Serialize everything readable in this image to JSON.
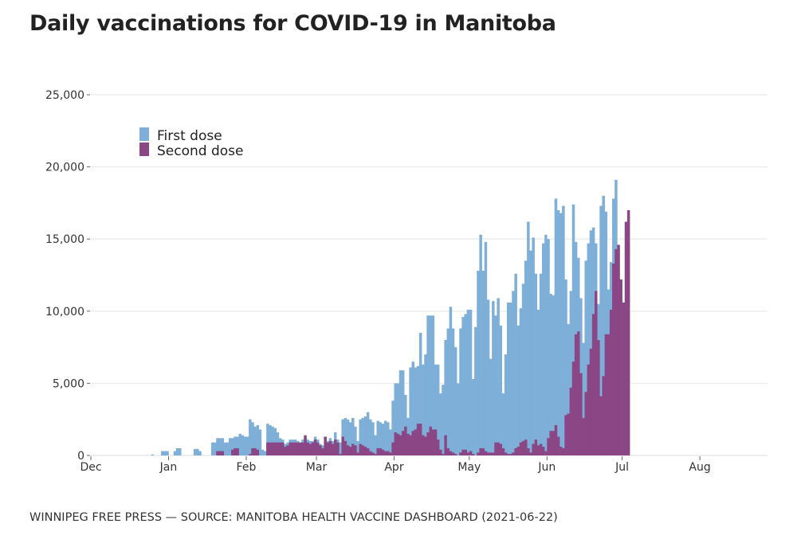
{
  "title": "Daily vaccinations for COVID-19 in Manitoba",
  "footer": "WINNIPEG FREE PRESS — SOURCE: MANITOBA HEALTH VACCINE DASHBOARD (2021-06-22)",
  "chart_data": {
    "type": "bar",
    "title": "Daily vaccinations for COVID-19 in Manitoba",
    "xlabel": "",
    "ylabel": "",
    "ylim": [
      0,
      25000
    ],
    "xlim": [
      "2020-12-01",
      "2021-08-28"
    ],
    "grid": true,
    "legend_position": "top-left",
    "yticks": [
      0,
      5000,
      10000,
      15000,
      20000,
      25000
    ],
    "ytick_labels": [
      "0",
      "5,000",
      "10,000",
      "15,000",
      "20,000",
      "25,000"
    ],
    "xticks": [
      "2020-12-01",
      "2021-01-01",
      "2021-02-01",
      "2021-03-01",
      "2021-04-01",
      "2021-05-01",
      "2021-06-01",
      "2021-07-01",
      "2021-08-01"
    ],
    "xtick_labels": [
      "Dec",
      "Jan",
      "Feb",
      "Mar",
      "Apr",
      "May",
      "Jun",
      "Jul",
      "Aug"
    ],
    "start_date": "2020-12-14",
    "series": [
      {
        "name": "First dose",
        "color": "#7eafd8",
        "values": [
          0,
          0,
          0,
          0,
          0,
          0,
          0,
          0,
          0,
          0,
          0,
          60,
          0,
          0,
          0,
          300,
          300,
          300,
          0,
          0,
          300,
          500,
          500,
          0,
          0,
          0,
          0,
          0,
          450,
          450,
          300,
          0,
          0,
          0,
          0,
          900,
          900,
          1200,
          1200,
          1200,
          900,
          900,
          1200,
          1200,
          1300,
          1300,
          1500,
          1400,
          1300,
          1300,
          2500,
          2300,
          2000,
          2100,
          1800,
          400,
          300,
          2200,
          2100,
          2000,
          1900,
          1600,
          1200,
          1100,
          800,
          900,
          1100,
          1100,
          1100,
          1000,
          900,
          1100,
          1300,
          1100,
          1000,
          1000,
          1300,
          1100,
          800,
          700,
          1300,
          1000,
          1200,
          1000,
          1600,
          1100,
          900,
          2500,
          2600,
          2500,
          2300,
          2600,
          2000,
          1000,
          2500,
          2600,
          2700,
          3000,
          2500,
          2300,
          1400,
          2400,
          2300,
          2200,
          2400,
          2300,
          1800,
          3800,
          5000,
          5000,
          5900,
          5900,
          4200,
          2600,
          6100,
          6500,
          6100,
          6200,
          8500,
          6300,
          7000,
          9700,
          9700,
          9700,
          6300,
          6300,
          4300,
          4900,
          8000,
          8800,
          10300,
          8800,
          7500,
          5000,
          8800,
          9600,
          9800,
          10100,
          10100,
          5300,
          8900,
          12800,
          15300,
          12800,
          14800,
          10800,
          6700,
          10700,
          9700,
          10900,
          9000,
          4300,
          7000,
          10600,
          10600,
          11400,
          12600,
          9000,
          10200,
          11900,
          13500,
          16200,
          14200,
          15100,
          12600,
          10100,
          12600,
          14700,
          15300,
          15000,
          11200,
          11100,
          17800,
          17000,
          16800,
          17300,
          12200,
          9100,
          11400,
          17400,
          14800,
          13700,
          10900,
          7800,
          13500,
          14700,
          15600,
          15800,
          14700,
          10500,
          17300,
          18000,
          16900,
          11500,
          13400,
          17800,
          19100
        ],
        "values_note": "approximate, read from bar heights"
      },
      {
        "name": "Second dose",
        "color": "#8b4685",
        "values": [
          0,
          0,
          0,
          0,
          0,
          0,
          0,
          0,
          0,
          0,
          0,
          0,
          0,
          0,
          0,
          0,
          0,
          0,
          0,
          0,
          0,
          0,
          0,
          0,
          0,
          0,
          0,
          0,
          0,
          0,
          0,
          0,
          0,
          0,
          0,
          0,
          0,
          300,
          300,
          300,
          0,
          0,
          0,
          400,
          500,
          500,
          0,
          0,
          0,
          0,
          100,
          500,
          500,
          400,
          0,
          0,
          0,
          900,
          900,
          900,
          900,
          900,
          900,
          900,
          600,
          700,
          900,
          900,
          900,
          900,
          900,
          900,
          1400,
          900,
          800,
          900,
          1100,
          900,
          700,
          500,
          1300,
          900,
          1000,
          800,
          1100,
          900,
          100,
          1300,
          1000,
          700,
          600,
          800,
          700,
          200,
          800,
          700,
          600,
          500,
          300,
          200,
          100,
          500,
          500,
          400,
          300,
          300,
          200,
          900,
          1600,
          1500,
          1400,
          1700,
          2000,
          1500,
          1400,
          1700,
          1800,
          2200,
          2200,
          1400,
          1300,
          1600,
          2000,
          1800,
          1800,
          1100,
          400,
          100,
          1400,
          500,
          300,
          200,
          100,
          0,
          200,
          400,
          400,
          200,
          300,
          100,
          0,
          200,
          500,
          500,
          300,
          200,
          200,
          200,
          900,
          900,
          800,
          500,
          200,
          100,
          100,
          200,
          500,
          600,
          900,
          1000,
          1100,
          500,
          200,
          800,
          1100,
          700,
          800,
          600,
          300,
          1200,
          1700,
          1700,
          2100,
          1300,
          600,
          500,
          2800,
          2900,
          4700,
          6500,
          8400,
          8600,
          5700,
          2600,
          4400,
          6300,
          7400,
          9800,
          11400,
          8000,
          4100,
          5500,
          8400,
          8400,
          10100,
          13300,
          14300,
          14600,
          12200,
          10600,
          16200,
          17000
        ],
        "values_note": "approximate, read from bar heights"
      }
    ]
  }
}
